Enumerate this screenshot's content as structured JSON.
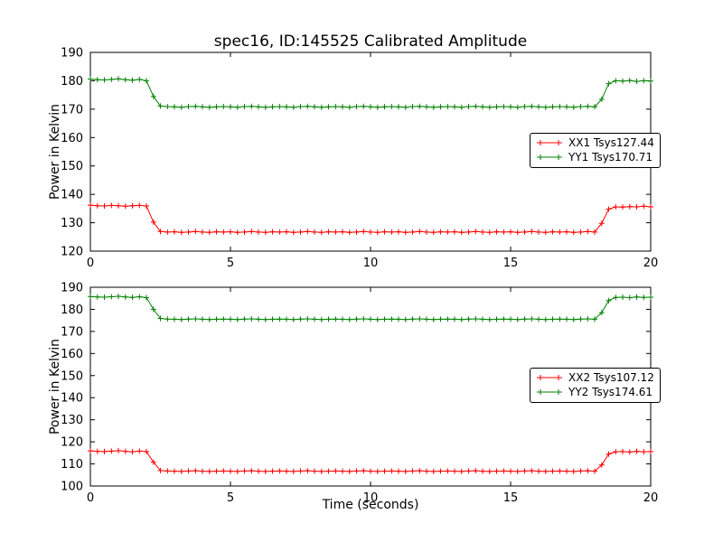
{
  "figure": {
    "background": "#ffffff",
    "frame_color": "#000000"
  },
  "chart_data": [
    {
      "type": "line",
      "title": "spec16, ID:145525 Calibrated Amplitude",
      "xlabel": "",
      "ylabel": "Power in Kelvin",
      "xlim": [
        0,
        20
      ],
      "ylim": [
        120,
        190
      ],
      "xticks": [
        0,
        5,
        10,
        15,
        20
      ],
      "yticks": [
        120,
        130,
        140,
        150,
        160,
        170,
        180,
        190
      ],
      "grid": false,
      "legend_position": "center-right",
      "marker": "plus",
      "x": [
        0.0,
        0.25,
        0.5,
        0.75,
        1.0,
        1.25,
        1.5,
        1.75,
        2.0,
        2.25,
        2.5,
        2.75,
        3.0,
        3.25,
        3.5,
        3.75,
        4.0,
        4.25,
        4.5,
        4.75,
        5.0,
        5.25,
        5.5,
        5.75,
        6.0,
        6.25,
        6.5,
        6.75,
        7.0,
        7.25,
        7.5,
        7.75,
        8.0,
        8.25,
        8.5,
        8.75,
        9.0,
        9.25,
        9.5,
        9.75,
        10.0,
        10.25,
        10.5,
        10.75,
        11.0,
        11.25,
        11.5,
        11.75,
        12.0,
        12.25,
        12.5,
        12.75,
        13.0,
        13.25,
        13.5,
        13.75,
        14.0,
        14.25,
        14.5,
        14.75,
        15.0,
        15.25,
        15.5,
        15.75,
        16.0,
        16.25,
        16.5,
        16.75,
        17.0,
        17.25,
        17.5,
        17.75,
        18.0,
        18.25,
        18.5,
        18.75,
        19.0,
        19.25,
        19.5,
        19.75,
        20.0
      ],
      "series": [
        {
          "name": "XX1 Tsys127.44",
          "color": "#ff0000",
          "values": [
            136.2,
            136.0,
            135.9,
            136.1,
            136.0,
            135.8,
            136.0,
            136.1,
            135.9,
            130.2,
            126.9,
            126.7,
            126.8,
            126.6,
            126.7,
            126.9,
            126.7,
            126.6,
            126.8,
            126.7,
            126.8,
            126.6,
            126.7,
            126.9,
            126.7,
            126.6,
            126.8,
            126.7,
            126.8,
            126.6,
            126.7,
            126.9,
            126.7,
            126.6,
            126.8,
            126.7,
            126.8,
            126.6,
            126.7,
            126.9,
            126.7,
            126.6,
            126.8,
            126.7,
            126.8,
            126.6,
            126.7,
            126.9,
            126.7,
            126.6,
            126.8,
            126.7,
            126.8,
            126.6,
            126.7,
            126.9,
            126.7,
            126.6,
            126.8,
            126.7,
            126.8,
            126.6,
            126.7,
            126.9,
            126.7,
            126.6,
            126.8,
            126.7,
            126.8,
            126.6,
            126.7,
            126.9,
            126.7,
            129.8,
            134.8,
            135.6,
            135.5,
            135.7,
            135.6,
            135.8,
            135.6
          ]
        },
        {
          "name": "YY1 Tsys170.71",
          "color": "#008000",
          "values": [
            180.6,
            180.4,
            180.3,
            180.5,
            180.7,
            180.4,
            180.2,
            180.5,
            180.0,
            174.5,
            171.1,
            170.9,
            170.8,
            170.7,
            170.9,
            171.0,
            170.8,
            170.7,
            170.8,
            170.9,
            170.8,
            170.7,
            170.9,
            171.0,
            170.8,
            170.7,
            170.8,
            170.9,
            170.8,
            170.7,
            170.9,
            171.0,
            170.8,
            170.7,
            170.8,
            170.9,
            170.8,
            170.7,
            170.9,
            171.0,
            170.8,
            170.7,
            170.8,
            170.9,
            170.8,
            170.7,
            170.9,
            171.0,
            170.8,
            170.7,
            170.8,
            170.9,
            170.8,
            170.7,
            170.9,
            171.0,
            170.8,
            170.7,
            170.8,
            170.9,
            170.8,
            170.7,
            170.9,
            171.0,
            170.8,
            170.7,
            170.8,
            170.9,
            170.8,
            170.7,
            170.9,
            171.0,
            170.8,
            173.5,
            179.0,
            180.0,
            179.9,
            180.1,
            179.8,
            180.0,
            179.9
          ]
        }
      ]
    },
    {
      "type": "line",
      "title": "",
      "xlabel": "Time (seconds)",
      "ylabel": "Power in Kelvin",
      "xlim": [
        0,
        20
      ],
      "ylim": [
        100,
        190
      ],
      "xticks": [
        0,
        5,
        10,
        15,
        20
      ],
      "yticks": [
        100,
        110,
        120,
        130,
        140,
        150,
        160,
        170,
        180,
        190
      ],
      "grid": false,
      "legend_position": "center-right",
      "marker": "plus",
      "x": [
        0.0,
        0.25,
        0.5,
        0.75,
        1.0,
        1.25,
        1.5,
        1.75,
        2.0,
        2.25,
        2.5,
        2.75,
        3.0,
        3.25,
        3.5,
        3.75,
        4.0,
        4.25,
        4.5,
        4.75,
        5.0,
        5.25,
        5.5,
        5.75,
        6.0,
        6.25,
        6.5,
        6.75,
        7.0,
        7.25,
        7.5,
        7.75,
        8.0,
        8.25,
        8.5,
        8.75,
        9.0,
        9.25,
        9.5,
        9.75,
        10.0,
        10.25,
        10.5,
        10.75,
        11.0,
        11.25,
        11.5,
        11.75,
        12.0,
        12.25,
        12.5,
        12.75,
        13.0,
        13.25,
        13.5,
        13.75,
        14.0,
        14.25,
        14.5,
        14.75,
        15.0,
        15.25,
        15.5,
        15.75,
        16.0,
        16.25,
        16.5,
        16.75,
        17.0,
        17.25,
        17.5,
        17.75,
        18.0,
        18.25,
        18.5,
        18.75,
        19.0,
        19.25,
        19.5,
        19.75,
        20.0
      ],
      "series": [
        {
          "name": "XX2 Tsys107.12",
          "color": "#ff0000",
          "values": [
            115.9,
            115.7,
            115.6,
            115.8,
            116.0,
            115.7,
            115.5,
            115.8,
            115.6,
            110.8,
            107.0,
            106.8,
            106.7,
            106.6,
            106.8,
            106.9,
            106.7,
            106.6,
            106.7,
            106.8,
            106.7,
            106.6,
            106.8,
            106.9,
            106.7,
            106.6,
            106.7,
            106.8,
            106.7,
            106.6,
            106.8,
            106.9,
            106.7,
            106.6,
            106.7,
            106.8,
            106.7,
            106.6,
            106.8,
            106.9,
            106.7,
            106.6,
            106.7,
            106.8,
            106.7,
            106.6,
            106.8,
            106.9,
            106.7,
            106.6,
            106.7,
            106.8,
            106.7,
            106.6,
            106.8,
            106.9,
            106.7,
            106.6,
            106.7,
            106.8,
            106.7,
            106.6,
            106.8,
            106.9,
            106.7,
            106.6,
            106.7,
            106.8,
            106.7,
            106.6,
            106.8,
            106.9,
            106.7,
            109.5,
            114.5,
            115.5,
            115.6,
            115.4,
            115.7,
            115.5,
            115.6
          ]
        },
        {
          "name": "YY2 Tsys174.61",
          "color": "#008000",
          "values": [
            185.8,
            185.6,
            185.5,
            185.7,
            185.9,
            185.6,
            185.4,
            185.7,
            185.3,
            180.0,
            175.9,
            175.6,
            175.5,
            175.4,
            175.6,
            175.7,
            175.5,
            175.4,
            175.5,
            175.6,
            175.5,
            175.4,
            175.6,
            175.7,
            175.5,
            175.4,
            175.5,
            175.6,
            175.5,
            175.4,
            175.6,
            175.7,
            175.5,
            175.4,
            175.5,
            175.6,
            175.5,
            175.4,
            175.6,
            175.7,
            175.5,
            175.4,
            175.5,
            175.6,
            175.5,
            175.4,
            175.6,
            175.7,
            175.5,
            175.4,
            175.5,
            175.6,
            175.5,
            175.4,
            175.6,
            175.7,
            175.5,
            175.4,
            175.5,
            175.6,
            175.5,
            175.4,
            175.6,
            175.7,
            175.5,
            175.4,
            175.5,
            175.6,
            175.5,
            175.4,
            175.6,
            175.7,
            175.5,
            178.5,
            184.0,
            185.4,
            185.5,
            185.3,
            185.6,
            185.4,
            185.5
          ]
        }
      ]
    }
  ]
}
